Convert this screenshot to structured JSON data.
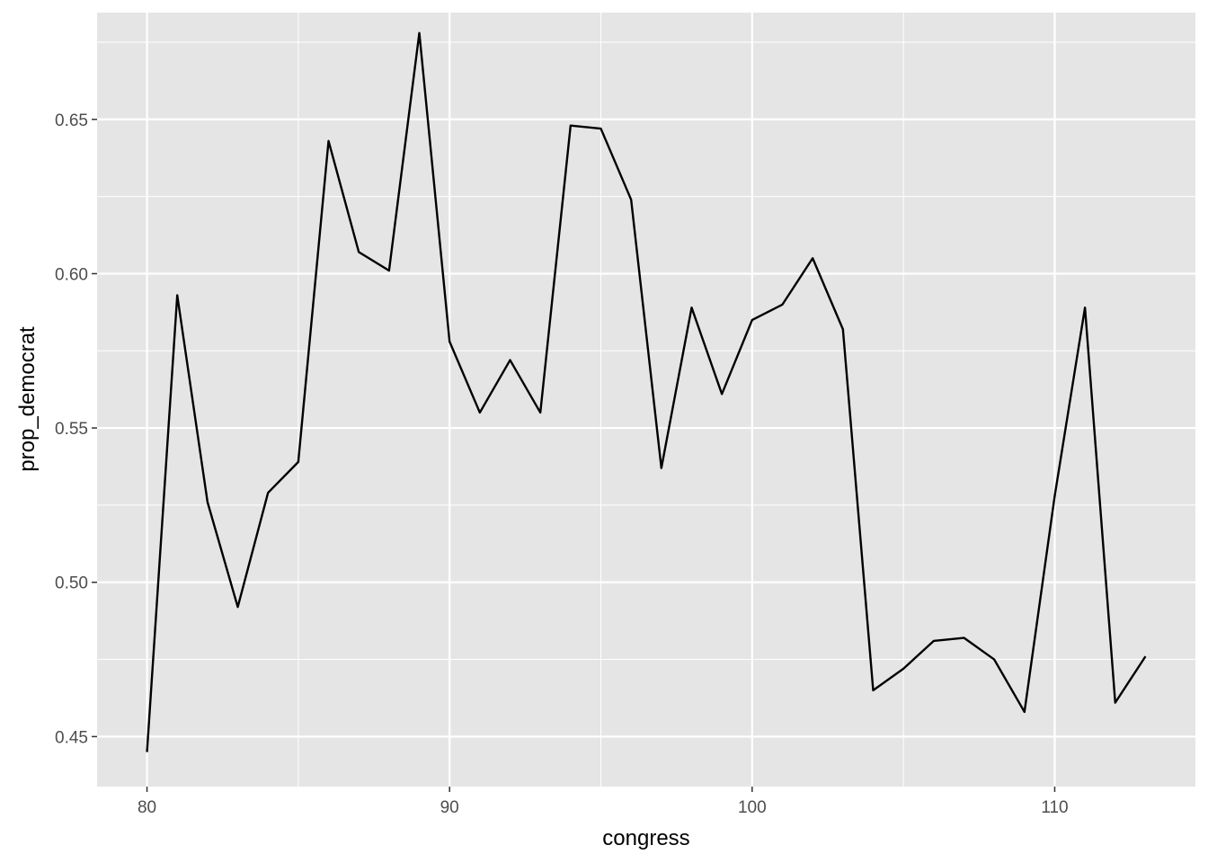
{
  "chart_data": {
    "type": "line",
    "xlabel": "congress",
    "ylabel": "prop_democrat",
    "xlim": [
      78.35,
      114.65
    ],
    "ylim": [
      0.4338,
      0.6846
    ],
    "x_ticks": [
      80,
      90,
      100,
      110
    ],
    "x_tick_labels": [
      "80",
      "90",
      "100",
      "110"
    ],
    "y_ticks": [
      0.45,
      0.5,
      0.55,
      0.6,
      0.65
    ],
    "y_tick_labels": [
      "0.45",
      "0.50",
      "0.55",
      "0.60",
      "0.65"
    ],
    "grid": true,
    "colors": {
      "panel": "#e5e5e5",
      "grid": "#ffffff",
      "line": "#000000"
    },
    "series": [
      {
        "x": [
          80,
          81,
          82,
          83,
          84,
          85,
          86,
          87,
          88,
          89,
          90,
          91,
          92,
          93,
          94,
          95,
          96,
          97,
          98,
          99,
          100,
          101,
          102,
          103,
          104,
          105,
          106,
          107,
          108,
          109,
          110,
          111,
          112,
          113
        ],
        "values": [
          0.445,
          0.593,
          0.526,
          0.492,
          0.529,
          0.539,
          0.643,
          0.607,
          0.601,
          0.678,
          0.578,
          0.555,
          0.572,
          0.555,
          0.648,
          0.647,
          0.624,
          0.537,
          0.589,
          0.561,
          0.585,
          0.59,
          0.605,
          0.582,
          0.465,
          0.472,
          0.481,
          0.482,
          0.475,
          0.458,
          0.528,
          0.589,
          0.461,
          0.476
        ]
      }
    ]
  }
}
